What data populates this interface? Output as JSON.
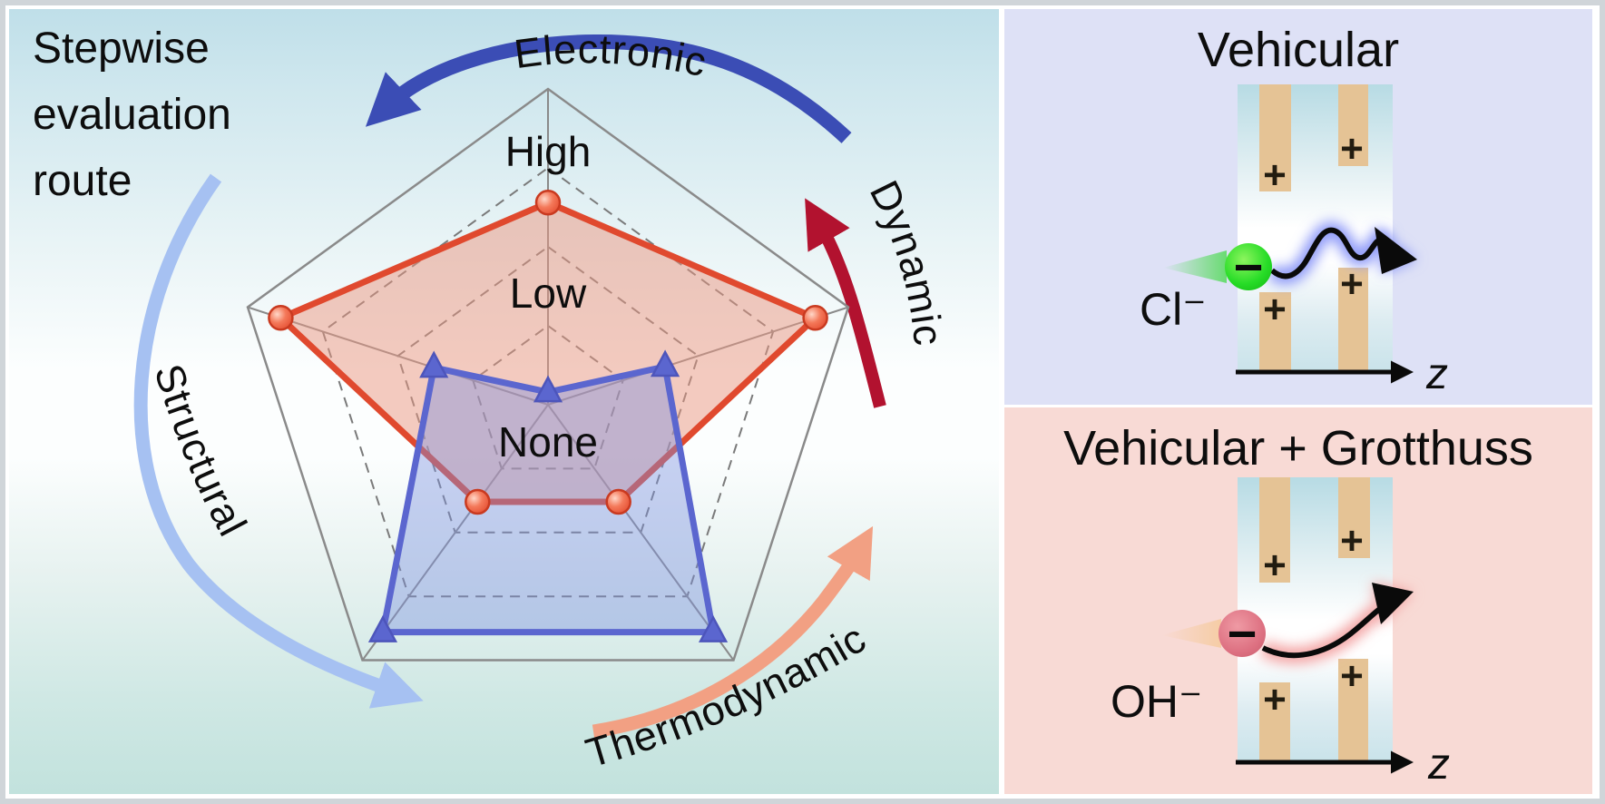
{
  "canvas": {
    "frame_color": "#d0d5d9",
    "background": "#ffffff"
  },
  "left_panel": {
    "background_top": "#bfdfe9",
    "background_middle": "#fcfefe",
    "background_bottom": "#c2e2dd",
    "title_lines": [
      "Stepwise",
      "evaluation",
      "route"
    ]
  },
  "chart_data": {
    "type": "radar",
    "axes_count": 5,
    "axis_positions": [
      "top",
      "right",
      "bottom-right",
      "bottom-left",
      "left"
    ],
    "category_arrows": [
      {
        "label": "Electronic",
        "position": "top",
        "direction": "counterclockwise",
        "color": "#3b4db5"
      },
      {
        "label": "Dynamic",
        "position": "right",
        "direction": "counterclockwise",
        "color": "#b2122f"
      },
      {
        "label": "Thermodynamic",
        "position": "bottom",
        "direction": "counterclockwise",
        "color": "#f2a083"
      },
      {
        "label": "Structural",
        "position": "left",
        "direction": "counterclockwise",
        "color": "#a6c1f2"
      }
    ],
    "scale_labels": [
      {
        "label": "High",
        "radius_fraction": 0.8
      },
      {
        "label": "Low",
        "radius_fraction": 0.36
      },
      {
        "label": "None",
        "radius_fraction": 0.0
      }
    ],
    "rings": [
      0.25,
      0.5,
      0.75,
      1.0
    ],
    "grid": {
      "ring_style": "dashed",
      "outer_style": "solid",
      "legend": "none"
    },
    "series": [
      {
        "name": "red-series",
        "marker": "circle",
        "color": "#e0492e",
        "fill": "rgba(233,149,127,0.5)",
        "marker_stroke": "#c93a20",
        "values_fraction": [
          0.64,
          0.89,
          0.38,
          0.38,
          0.89
        ]
      },
      {
        "name": "blue-series",
        "marker": "triangle",
        "color": "#5b66cf",
        "fill": "rgba(124,145,224,0.42)",
        "marker_stroke": "#4d55bb",
        "values_fraction": [
          0.04,
          0.39,
          0.89,
          0.89,
          0.38
        ]
      }
    ]
  },
  "right_top_panel": {
    "background": "#dee1f6",
    "title": "Vehicular",
    "ion_label": "Cl⁻",
    "ion_sign": "−",
    "ion_color": "#1ddc1f",
    "plus": "+",
    "axis_label": "z",
    "trajectory_icon": "wavy-arrow-blue-glow"
  },
  "right_bottom_panel": {
    "background": "#f8dad5",
    "title": "Vehicular + Grotthuss",
    "ion_label": "OH⁻",
    "ion_sign": "−",
    "ion_color": "#d96a79",
    "plus": "+",
    "axis_label": "z",
    "trajectory_icon": "smooth-arrow-red-glow"
  }
}
